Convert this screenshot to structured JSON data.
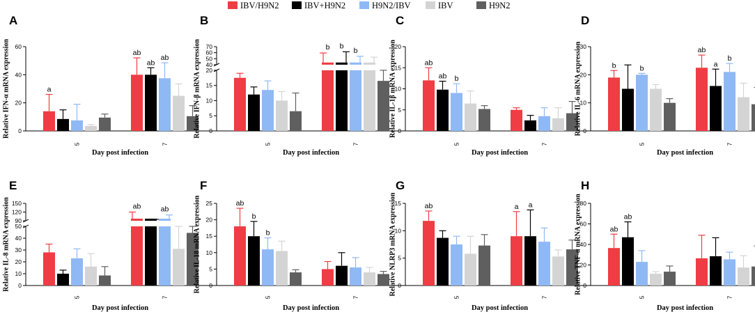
{
  "legend": [
    {
      "name": "IBV/H9N2",
      "color": "#f03c44"
    },
    {
      "name": "IBV+H9N2",
      "color": "#000000"
    },
    {
      "name": "H9N2/IBV",
      "color": "#8fb9f4"
    },
    {
      "name": "IBV",
      "color": "#d4d4d4"
    },
    {
      "name": "H9N2",
      "color": "#5f5f5f"
    }
  ],
  "chart_data": [
    {
      "type": "bar",
      "panel": "A",
      "ylabel": "Relative IFN-α mRNA expression",
      "xlabel": "Day post infection",
      "categories": [
        "5",
        "7"
      ],
      "ylim": [
        0,
        60
      ],
      "yticks": [
        "0",
        "20",
        "40",
        "60"
      ],
      "series": [
        {
          "name": "IBV/H9N2",
          "values": [
            14,
            40
          ],
          "errors": [
            12,
            12
          ]
        },
        {
          "name": "IBV+H9N2",
          "values": [
            8.5,
            40
          ],
          "errors": [
            6.5,
            5
          ]
        },
        {
          "name": "H9N2/IBV",
          "values": [
            7.5,
            37.5
          ],
          "errors": [
            11.5,
            11
          ]
        },
        {
          "name": "IBV",
          "values": [
            3.5,
            25
          ],
          "errors": [
            1,
            8.5
          ]
        },
        {
          "name": "H9N2",
          "values": [
            9.5,
            10.5
          ],
          "errors": [
            2.5,
            7.5
          ]
        }
      ],
      "significance": [
        {
          "category": "5",
          "series": "IBV/H9N2",
          "label": "a"
        },
        {
          "category": "7",
          "series": "IBV/H9N2",
          "label": "ab"
        },
        {
          "category": "7",
          "series": "IBV+H9N2",
          "label": "ab"
        },
        {
          "category": "7",
          "series": "H9N2/IBV",
          "label": "ab"
        }
      ]
    },
    {
      "type": "bar",
      "panel": "B",
      "ylabel": "Relative IFN-β mRNA expression",
      "xlabel": "Day post infection",
      "categories": [
        "5",
        "7"
      ],
      "ylim": [
        0,
        20
      ],
      "yticks": [
        "0",
        "5",
        "10",
        "15",
        "20"
      ],
      "upper_axis": {
        "range": [
          40,
          70
        ],
        "ticks": [
          "40",
          "50",
          "60",
          "70"
        ]
      },
      "series": [
        {
          "name": "IBV/H9N2",
          "values": [
            17.5,
            20
          ],
          "errors": [
            1.5,
            39
          ],
          "broken": [
            false,
            true
          ]
        },
        {
          "name": "IBV+H9N2",
          "values": [
            12,
            20
          ],
          "errors": [
            2.5,
            43
          ],
          "broken": [
            false,
            true
          ]
        },
        {
          "name": "H9N2/IBV",
          "values": [
            13.5,
            20
          ],
          "errors": [
            3,
            28
          ],
          "broken": [
            false,
            true
          ]
        },
        {
          "name": "IBV",
          "values": [
            10,
            20
          ],
          "errors": [
            3,
            25
          ],
          "broken": [
            false,
            true
          ]
        },
        {
          "name": "H9N2",
          "values": [
            6.5,
            16.5
          ],
          "errors": [
            6,
            6.5
          ]
        }
      ],
      "significance": [
        {
          "category": "7",
          "series": "IBV/H9N2",
          "label": "b"
        },
        {
          "category": "7",
          "series": "IBV+H9N2",
          "label": "b"
        },
        {
          "category": "7",
          "series": "H9N2/IBV",
          "label": "b"
        }
      ]
    },
    {
      "type": "bar",
      "panel": "C",
      "ylabel": "Relative IL-1β mRNA expression",
      "xlabel": "Day post infection",
      "categories": [
        "5",
        "7"
      ],
      "ylim": [
        0,
        20
      ],
      "yticks": [
        "0",
        "5",
        "10",
        "15",
        "20"
      ],
      "series": [
        {
          "name": "IBV/H9N2",
          "values": [
            12,
            5
          ],
          "errors": [
            3,
            0.5
          ]
        },
        {
          "name": "IBV+H9N2",
          "values": [
            9.8,
            2.5
          ],
          "errors": [
            2,
            1.2
          ]
        },
        {
          "name": "H9N2/IBV",
          "values": [
            9,
            3.5
          ],
          "errors": [
            2.2,
            2
          ]
        },
        {
          "name": "IBV",
          "values": [
            6.5,
            3
          ],
          "errors": [
            3,
            2.5
          ]
        },
        {
          "name": "H9N2",
          "values": [
            5.2,
            4.2
          ],
          "errors": [
            0.8,
            2.8
          ]
        }
      ],
      "significance": [
        {
          "category": "5",
          "series": "IBV/H9N2",
          "label": "ab"
        },
        {
          "category": "5",
          "series": "IBV+H9N2",
          "label": "ab"
        },
        {
          "category": "5",
          "series": "H9N2/IBV",
          "label": "b"
        }
      ]
    },
    {
      "type": "bar",
      "panel": "D",
      "ylabel": "Relative IL-6 mRNA expression",
      "xlabel": "Day post infection",
      "categories": [
        "5",
        "7"
      ],
      "ylim": [
        0,
        30
      ],
      "yticks": [
        "0",
        "10",
        "20",
        "30"
      ],
      "series": [
        {
          "name": "IBV/H9N2",
          "values": [
            19,
            22.5
          ],
          "errors": [
            2.5,
            4.5
          ]
        },
        {
          "name": "IBV+H9N2",
          "values": [
            15,
            16
          ],
          "errors": [
            8.5,
            6
          ]
        },
        {
          "name": "H9N2/IBV",
          "values": [
            20,
            21
          ],
          "errors": [
            0.5,
            3
          ]
        },
        {
          "name": "IBV",
          "values": [
            15,
            12
          ],
          "errors": [
            1.5,
            5
          ]
        },
        {
          "name": "H9N2",
          "values": [
            10,
            9.5
          ],
          "errors": [
            1.5,
            6
          ]
        }
      ],
      "significance": [
        {
          "category": "5",
          "series": "IBV/H9N2",
          "label": "b"
        },
        {
          "category": "5",
          "series": "H9N2/IBV",
          "label": "b"
        },
        {
          "category": "7",
          "series": "IBV/H9N2",
          "label": "ab"
        },
        {
          "category": "7",
          "series": "IBV+H9N2",
          "label": "a"
        },
        {
          "category": "7",
          "series": "H9N2/IBV",
          "label": "b"
        }
      ]
    },
    {
      "type": "bar",
      "panel": "E",
      "ylabel": "Relative IL-8 mRNA expression",
      "xlabel": "Day post infection",
      "categories": [
        "5",
        "7"
      ],
      "ylim": [
        0,
        50
      ],
      "yticks": [
        "0",
        "10",
        "20",
        "30",
        "40",
        "50"
      ],
      "upper_axis": {
        "range": [
          90,
          150
        ],
        "ticks": [
          "90",
          "120",
          "150"
        ]
      },
      "series": [
        {
          "name": "IBV/H9N2",
          "values": [
            28,
            100
          ],
          "errors": [
            7,
            30
          ],
          "broken": [
            false,
            true
          ]
        },
        {
          "name": "IBV+H9N2",
          "values": [
            10,
            100
          ],
          "errors": [
            3,
            5
          ],
          "broken": [
            false,
            true
          ]
        },
        {
          "name": "H9N2/IBV",
          "values": [
            23,
            100
          ],
          "errors": [
            8,
            20
          ],
          "broken": [
            false,
            true
          ]
        },
        {
          "name": "IBV",
          "values": [
            16,
            31
          ],
          "errors": [
            11,
            24
          ]
        },
        {
          "name": "H9N2",
          "values": [
            8.5,
            44.5
          ],
          "errors": [
            7.5,
            20
          ]
        }
      ],
      "significance": [
        {
          "category": "7",
          "series": "IBV/H9N2",
          "label": "ab"
        },
        {
          "category": "7",
          "series": "H9N2/IBV",
          "label": "ab"
        }
      ]
    },
    {
      "type": "bar",
      "panel": "F",
      "ylabel": "Relative IL-18 mRNA expression",
      "xlabel": "Day post infection",
      "categories": [
        "5",
        "7"
      ],
      "ylim": [
        0,
        25
      ],
      "yticks": [
        "0",
        "5",
        "10",
        "15",
        "20",
        "25"
      ],
      "series": [
        {
          "name": "IBV/H9N2",
          "values": [
            18,
            5
          ],
          "errors": [
            5.5,
            2.3
          ]
        },
        {
          "name": "IBV+H9N2",
          "values": [
            15,
            6
          ],
          "errors": [
            4.5,
            4
          ]
        },
        {
          "name": "H9N2/IBV",
          "values": [
            11,
            5.5
          ],
          "errors": [
            3.5,
            3
          ]
        },
        {
          "name": "IBV",
          "values": [
            10.5,
            4
          ],
          "errors": [
            3,
            1.5
          ]
        },
        {
          "name": "H9N2",
          "values": [
            4,
            3.5
          ],
          "errors": [
            0.8,
            0.8
          ]
        }
      ],
      "significance": [
        {
          "category": "5",
          "series": "IBV/H9N2",
          "label": "ab"
        },
        {
          "category": "5",
          "series": "IBV+H9N2",
          "label": "b"
        },
        {
          "category": "5",
          "series": "H9N2/IBV",
          "label": "b"
        }
      ]
    },
    {
      "type": "bar",
      "panel": "G",
      "ylabel": "Relative NLRP3 mRNA expression",
      "xlabel": "Day post infection",
      "categories": [
        "5",
        "7"
      ],
      "ylim": [
        0,
        15
      ],
      "yticks": [
        "0",
        "5",
        "10",
        "15"
      ],
      "series": [
        {
          "name": "IBV/H9N2",
          "values": [
            11.8,
            9
          ],
          "errors": [
            1.8,
            4.5
          ]
        },
        {
          "name": "IBV+H9N2",
          "values": [
            8.7,
            9
          ],
          "errors": [
            1.3,
            4.8
          ]
        },
        {
          "name": "H9N2/IBV",
          "values": [
            7.5,
            8
          ],
          "errors": [
            1.5,
            2.5
          ]
        },
        {
          "name": "IBV",
          "values": [
            5.8,
            5.3
          ],
          "errors": [
            3.2,
            1.2
          ]
        },
        {
          "name": "H9N2",
          "values": [
            7.3,
            6.6
          ],
          "errors": [
            2,
            1.7
          ]
        }
      ],
      "significance": [
        {
          "category": "5",
          "series": "IBV/H9N2",
          "label": "ab"
        },
        {
          "category": "7",
          "series": "IBV/H9N2",
          "label": "a"
        },
        {
          "category": "7",
          "series": "IBV+H9N2",
          "label": "a"
        }
      ]
    },
    {
      "type": "bar",
      "panel": "H",
      "ylabel": "Relative TNF-α mRNA expression",
      "xlabel": "Day post infection",
      "categories": [
        "5",
        "7"
      ],
      "ylim": [
        0,
        80
      ],
      "yticks": [
        "0",
        "20",
        "40",
        "60",
        "80"
      ],
      "series": [
        {
          "name": "IBV/H9N2",
          "values": [
            36.5,
            26.5
          ],
          "errors": [
            13.5,
            22.5
          ]
        },
        {
          "name": "IBV+H9N2",
          "values": [
            47,
            28.5
          ],
          "errors": [
            15,
            18
          ]
        },
        {
          "name": "H9N2/IBV",
          "values": [
            23,
            25.5
          ],
          "errors": [
            11,
            7
          ]
        },
        {
          "name": "IBV",
          "values": [
            11.5,
            17.5
          ],
          "errors": [
            2,
            11.5
          ]
        },
        {
          "name": "H9N2",
          "values": [
            13.5,
            18.5
          ],
          "errors": [
            5.5,
            20
          ]
        }
      ],
      "significance": [
        {
          "category": "5",
          "series": "IBV/H9N2",
          "label": "ab"
        },
        {
          "category": "5",
          "series": "IBV+H9N2",
          "label": "ab"
        }
      ]
    }
  ]
}
